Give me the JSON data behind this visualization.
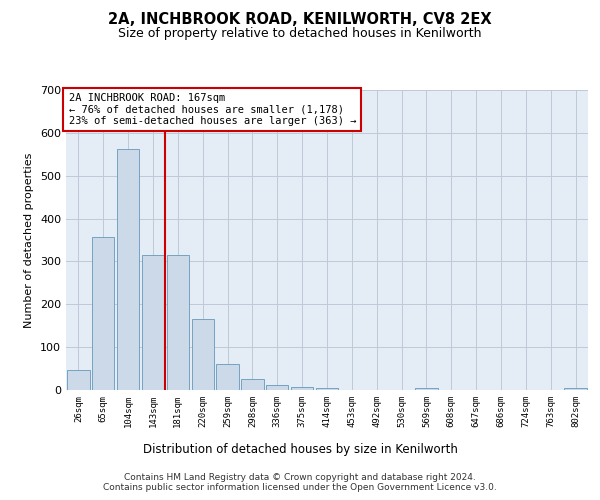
{
  "title": "2A, INCHBROOK ROAD, KENILWORTH, CV8 2EX",
  "subtitle": "Size of property relative to detached houses in Kenilworth",
  "xlabel": "Distribution of detached houses by size in Kenilworth",
  "ylabel": "Number of detached properties",
  "footer_line1": "Contains HM Land Registry data © Crown copyright and database right 2024.",
  "footer_line2": "Contains public sector information licensed under the Open Government Licence v3.0.",
  "bin_labels": [
    "26sqm",
    "65sqm",
    "104sqm",
    "143sqm",
    "181sqm",
    "220sqm",
    "259sqm",
    "298sqm",
    "336sqm",
    "375sqm",
    "414sqm",
    "453sqm",
    "492sqm",
    "530sqm",
    "569sqm",
    "608sqm",
    "647sqm",
    "686sqm",
    "724sqm",
    "763sqm",
    "802sqm"
  ],
  "bar_values": [
    46,
    356,
    562,
    315,
    315,
    166,
    60,
    25,
    11,
    6,
    5,
    0,
    0,
    0,
    5,
    0,
    0,
    0,
    0,
    0,
    5
  ],
  "bar_color": "#ccd9e8",
  "bar_edge_color": "#6699bb",
  "grid_color": "#bfc8d8",
  "background_color": "#e4ecf5",
  "vline_x_index": 3,
  "vline_color": "#cc0000",
  "annotation_line1": "2A INCHBROOK ROAD: 167sqm",
  "annotation_line2": "← 76% of detached houses are smaller (1,178)",
  "annotation_line3": "23% of semi-detached houses are larger (363) →",
  "annotation_box_color": "#cc0000",
  "ylim": [
    0,
    700
  ],
  "yticks": [
    0,
    100,
    200,
    300,
    400,
    500,
    600,
    700
  ]
}
